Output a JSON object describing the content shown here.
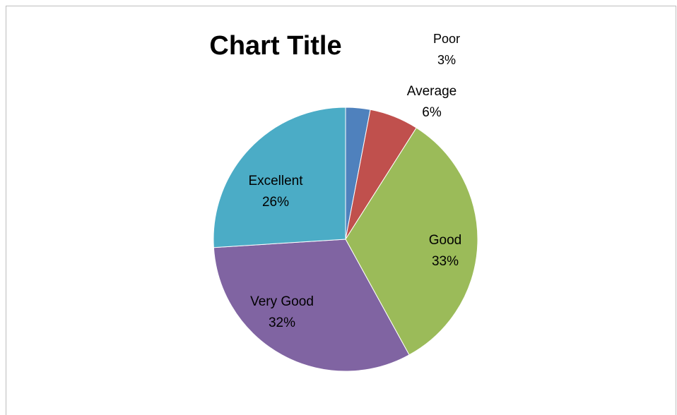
{
  "chart_data": {
    "type": "pie",
    "title": "Chart Title",
    "categories": [
      "Poor",
      "Average",
      "Good",
      "Very Good",
      "Excellent"
    ],
    "values": [
      3,
      6,
      33,
      32,
      26
    ],
    "labels": [
      "3%",
      "6%",
      "33%",
      "32%",
      "26%"
    ],
    "colors": [
      "#4f81bd",
      "#c0504d",
      "#9bbb59",
      "#8064a2",
      "#4bacc6"
    ],
    "legend": "none",
    "data_labels": "category and percentage"
  }
}
